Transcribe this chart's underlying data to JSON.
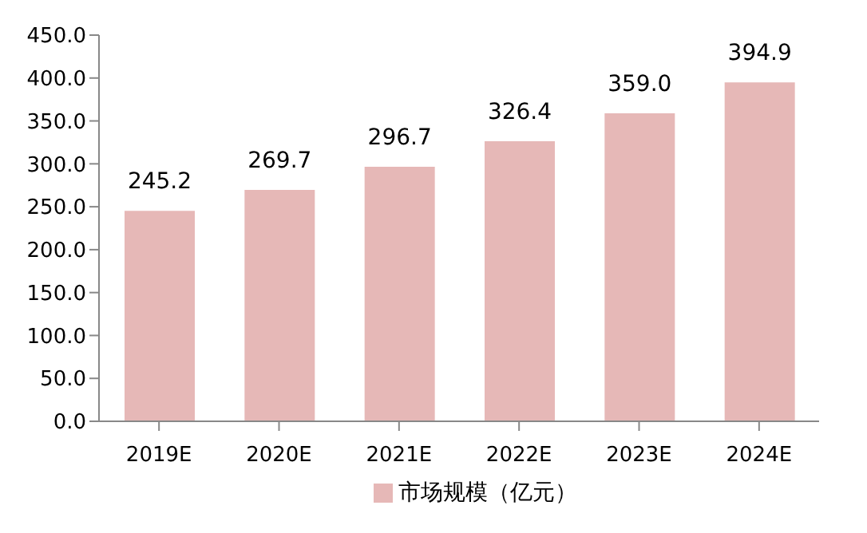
{
  "chart_data": {
    "type": "bar",
    "categories": [
      "2019E",
      "2020E",
      "2021E",
      "2022E",
      "2023E",
      "2024E"
    ],
    "series": [
      {
        "name": "市场规模（亿元）",
        "color": "#e6b8b7",
        "values": [
          245.2,
          269.7,
          296.7,
          326.4,
          359.0,
          394.9
        ]
      }
    ],
    "value_labels": [
      "245.2",
      "269.7",
      "296.7",
      "326.4",
      "359.0",
      "394.9"
    ],
    "ylim": [
      0,
      450
    ],
    "yticks": [
      {
        "value": 0,
        "label": "0.0"
      },
      {
        "value": 50,
        "label": "50.0"
      },
      {
        "value": 100,
        "label": "100.0"
      },
      {
        "value": 150,
        "label": "150.0"
      },
      {
        "value": 200,
        "label": "200.0"
      },
      {
        "value": 250,
        "label": "250.0"
      },
      {
        "value": 300,
        "label": "300.0"
      },
      {
        "value": 350,
        "label": "350.0"
      },
      {
        "value": 400,
        "label": "400.0"
      },
      {
        "value": 450,
        "label": "450.0"
      }
    ],
    "grid": false,
    "legend": "bottom"
  }
}
